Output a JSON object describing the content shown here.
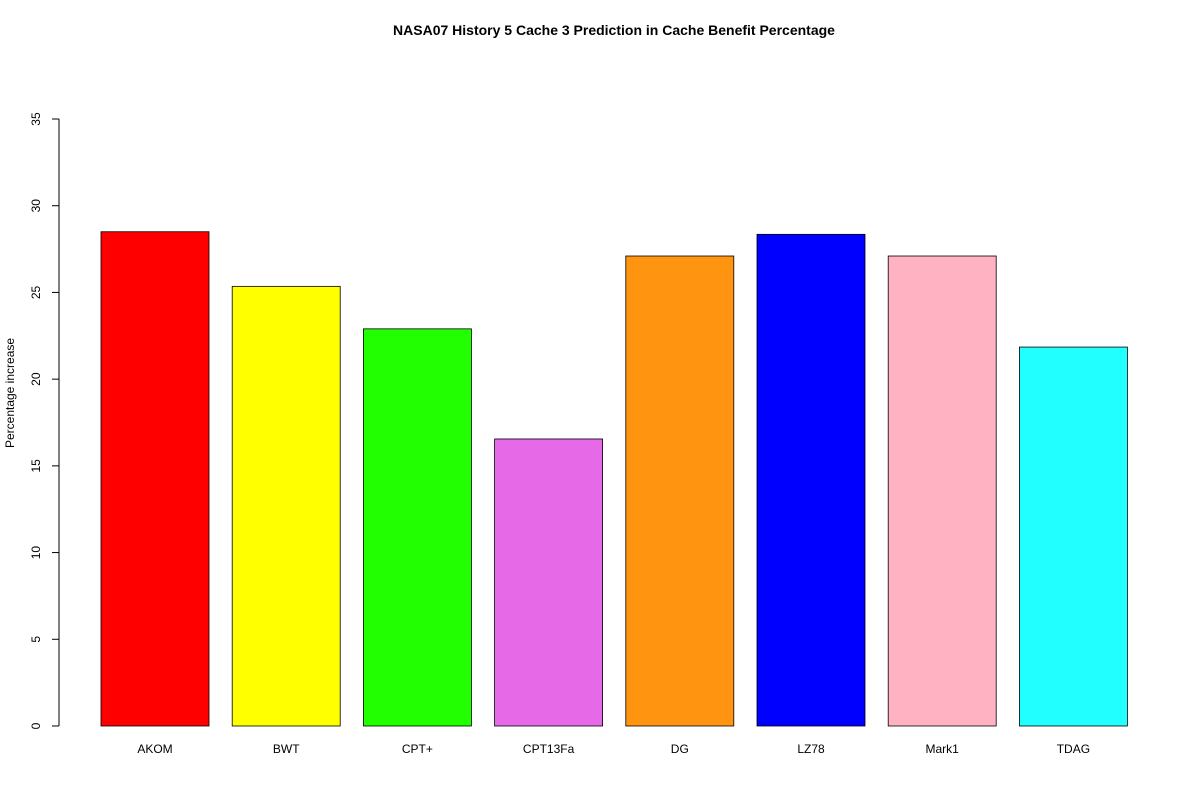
{
  "chart_data": {
    "type": "bar",
    "title": "NASA07  History  5  Cache  3 Prediction in Cache Benefit Percentage",
    "xlabel": "",
    "ylabel": "Percentage increase",
    "ylim": [
      0,
      35
    ],
    "yticks": [
      0,
      5,
      10,
      15,
      20,
      25,
      30,
      35
    ],
    "grid": false,
    "categories": [
      "AKOM",
      "BWT",
      "CPT+",
      "CPT13Fa",
      "DG",
      "LZ78",
      "Mark1",
      "TDAG"
    ],
    "values": [
      28.5,
      25.35,
      22.9,
      16.55,
      27.1,
      28.35,
      27.1,
      21.85
    ],
    "colors": [
      "#FF0000",
      "#FFFF00",
      "#22FF00",
      "#E66AE8",
      "#FF9410",
      "#0000FF",
      "#FFB2C2",
      "#22FFFF"
    ]
  }
}
